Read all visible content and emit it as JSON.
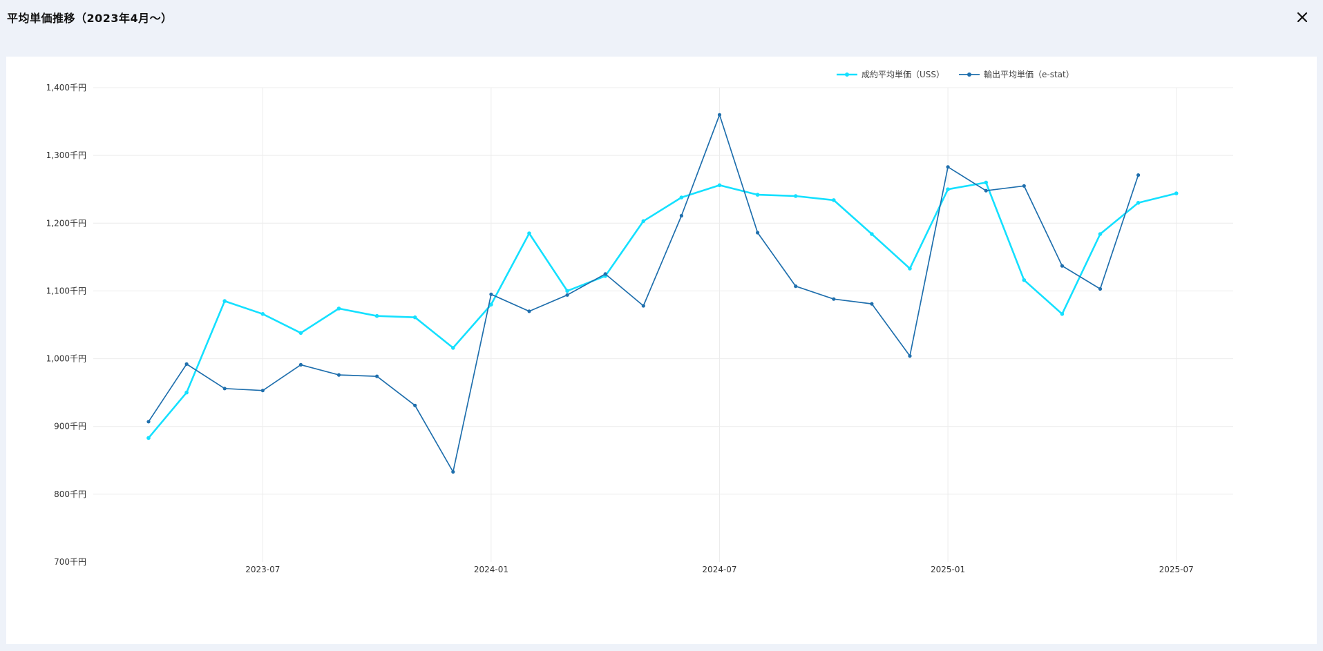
{
  "dialog": {
    "title": "平均単価推移（2023年4月〜）",
    "close_icon": "close-icon"
  },
  "chart_data": {
    "type": "line",
    "title": "平均単価推移（2023年4月〜）",
    "xlabel": "",
    "ylabel": "",
    "ylim": [
      700,
      1400
    ],
    "y_ticks": [
      700,
      800,
      900,
      1000,
      1100,
      1200,
      1300,
      1400
    ],
    "y_tick_labels": [
      "700千円",
      "800千円",
      "900千円",
      "1,000千円",
      "1,100千円",
      "1,200千円",
      "1,300千円",
      "1,400千円"
    ],
    "x_ticks": [
      "2023-07",
      "2024-01",
      "2024-07",
      "2025-01",
      "2025-07"
    ],
    "x_tick_labels": [
      "2023-07",
      "2024-01",
      "2024-07",
      "2025-01",
      "2025-07"
    ],
    "grid": true,
    "legend_position": "top-right",
    "series": [
      {
        "name": "成約平均単価（USS）",
        "color": "#14e0ff",
        "x": [
          "2023-04",
          "2023-05",
          "2023-06",
          "2023-07",
          "2023-08",
          "2023-09",
          "2023-10",
          "2023-11",
          "2023-12",
          "2024-01",
          "2024-02",
          "2024-03",
          "2024-04",
          "2024-05",
          "2024-06",
          "2024-07",
          "2024-08",
          "2024-09",
          "2024-10",
          "2024-11",
          "2024-12",
          "2025-01",
          "2025-02",
          "2025-03",
          "2025-04",
          "2025-05",
          "2025-06",
          "2025-07"
        ],
        "values": [
          883,
          950,
          1085,
          1066,
          1038,
          1074,
          1063,
          1061,
          1016,
          1080,
          1185,
          1100,
          1122,
          1203,
          1238,
          1256,
          1242,
          1240,
          1234,
          1184,
          1133,
          1250,
          1260,
          1116,
          1066,
          1184,
          1230,
          1244
        ]
      },
      {
        "name": "輸出平均単価（e-stat）",
        "color": "#1f6fad",
        "x": [
          "2023-04",
          "2023-05",
          "2023-06",
          "2023-07",
          "2023-08",
          "2023-09",
          "2023-10",
          "2023-11",
          "2023-12",
          "2024-01",
          "2024-02",
          "2024-03",
          "2024-04",
          "2024-05",
          "2024-06",
          "2024-07",
          "2024-08",
          "2024-09",
          "2024-10",
          "2024-11",
          "2024-12",
          "2025-01",
          "2025-02",
          "2025-03",
          "2025-04",
          "2025-05",
          "2025-06"
        ],
        "values": [
          907,
          992,
          956,
          953,
          991,
          976,
          974,
          931,
          833,
          1095,
          1070,
          1094,
          1125,
          1078,
          1211,
          1360,
          1186,
          1107,
          1088,
          1081,
          1004,
          1283,
          1248,
          1255,
          1137,
          1103,
          1271
        ]
      }
    ]
  }
}
